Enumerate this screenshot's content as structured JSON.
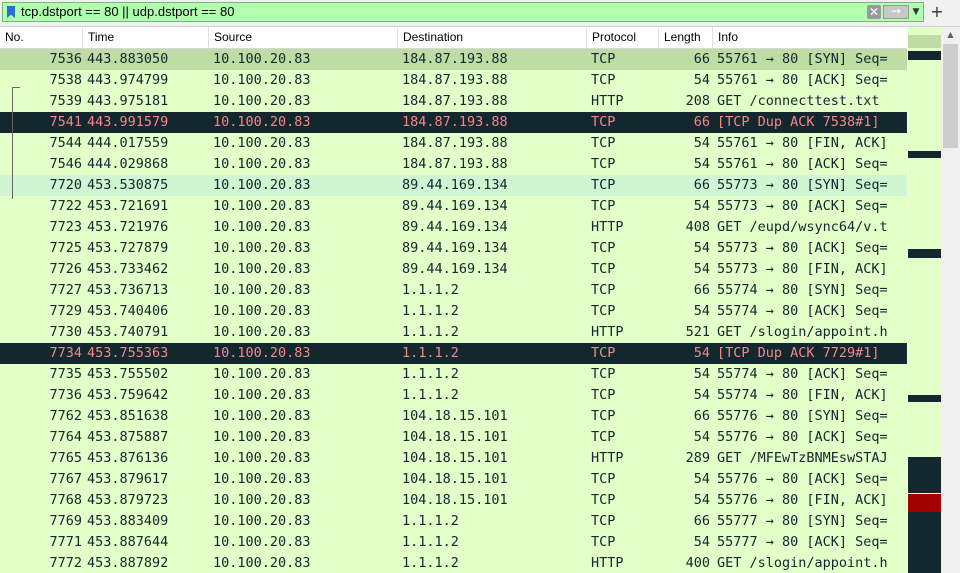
{
  "filter": {
    "value": "tcp.dstport == 80 || udp.dstport == 80",
    "clear_glyph": "✕",
    "apply_glyph": "→",
    "dropdown_glyph": "▼",
    "add_glyph": "+"
  },
  "columns": [
    "No.",
    "Time",
    "Source",
    "Destination",
    "Protocol",
    "Length",
    "Info"
  ],
  "packets": [
    {
      "no": "7536",
      "time": "443.883050",
      "src": "10.100.20.83",
      "dst": "184.87.193.88",
      "proto": "TCP",
      "len": "66",
      "info": "55761 → 80 [SYN] Seq=",
      "style": "sel"
    },
    {
      "no": "7538",
      "time": "443.974799",
      "src": "10.100.20.83",
      "dst": "184.87.193.88",
      "proto": "TCP",
      "len": "54",
      "info": "55761 → 80 [ACK] Seq=",
      "style": ""
    },
    {
      "no": "7539",
      "time": "443.975181",
      "src": "10.100.20.83",
      "dst": "184.87.193.88",
      "proto": "HTTP",
      "len": "208",
      "info": "GET /connecttest.txt",
      "style": ""
    },
    {
      "no": "7541",
      "time": "443.991579",
      "src": "10.100.20.83",
      "dst": "184.87.193.88",
      "proto": "TCP",
      "len": "66",
      "info": "[TCP Dup ACK 7538#1]",
      "style": "err"
    },
    {
      "no": "7544",
      "time": "444.017559",
      "src": "10.100.20.83",
      "dst": "184.87.193.88",
      "proto": "TCP",
      "len": "54",
      "info": "55761 → 80 [FIN, ACK]",
      "style": ""
    },
    {
      "no": "7546",
      "time": "444.029868",
      "src": "10.100.20.83",
      "dst": "184.87.193.88",
      "proto": "TCP",
      "len": "54",
      "info": "55761 → 80 [ACK] Seq=",
      "style": ""
    },
    {
      "no": "7720",
      "time": "453.530875",
      "src": "10.100.20.83",
      "dst": "89.44.169.134",
      "proto": "TCP",
      "len": "66",
      "info": "55773 → 80 [SYN] Seq=",
      "style": "hl"
    },
    {
      "no": "7722",
      "time": "453.721691",
      "src": "10.100.20.83",
      "dst": "89.44.169.134",
      "proto": "TCP",
      "len": "54",
      "info": "55773 → 80 [ACK] Seq=",
      "style": ""
    },
    {
      "no": "7723",
      "time": "453.721976",
      "src": "10.100.20.83",
      "dst": "89.44.169.134",
      "proto": "HTTP",
      "len": "408",
      "info": "GET /eupd/wsync64/v.t",
      "style": ""
    },
    {
      "no": "7725",
      "time": "453.727879",
      "src": "10.100.20.83",
      "dst": "89.44.169.134",
      "proto": "TCP",
      "len": "54",
      "info": "55773 → 80 [ACK] Seq=",
      "style": ""
    },
    {
      "no": "7726",
      "time": "453.733462",
      "src": "10.100.20.83",
      "dst": "89.44.169.134",
      "proto": "TCP",
      "len": "54",
      "info": "55773 → 80 [FIN, ACK]",
      "style": ""
    },
    {
      "no": "7727",
      "time": "453.736713",
      "src": "10.100.20.83",
      "dst": "1.1.1.2",
      "proto": "TCP",
      "len": "66",
      "info": "55774 → 80 [SYN] Seq=",
      "style": ""
    },
    {
      "no": "7729",
      "time": "453.740406",
      "src": "10.100.20.83",
      "dst": "1.1.1.2",
      "proto": "TCP",
      "len": "54",
      "info": "55774 → 80 [ACK] Seq=",
      "style": ""
    },
    {
      "no": "7730",
      "time": "453.740791",
      "src": "10.100.20.83",
      "dst": "1.1.1.2",
      "proto": "HTTP",
      "len": "521",
      "info": "GET /slogin/appoint.h",
      "style": ""
    },
    {
      "no": "7734",
      "time": "453.755363",
      "src": "10.100.20.83",
      "dst": "1.1.1.2",
      "proto": "TCP",
      "len": "54",
      "info": "[TCP Dup ACK 7729#1]",
      "style": "err"
    },
    {
      "no": "7735",
      "time": "453.755502",
      "src": "10.100.20.83",
      "dst": "1.1.1.2",
      "proto": "TCP",
      "len": "54",
      "info": "55774 → 80 [ACK] Seq=",
      "style": ""
    },
    {
      "no": "7736",
      "time": "453.759642",
      "src": "10.100.20.83",
      "dst": "1.1.1.2",
      "proto": "TCP",
      "len": "54",
      "info": "55774 → 80 [FIN, ACK]",
      "style": ""
    },
    {
      "no": "7762",
      "time": "453.851638",
      "src": "10.100.20.83",
      "dst": "104.18.15.101",
      "proto": "TCP",
      "len": "66",
      "info": "55776 → 80 [SYN] Seq=",
      "style": ""
    },
    {
      "no": "7764",
      "time": "453.875887",
      "src": "10.100.20.83",
      "dst": "104.18.15.101",
      "proto": "TCP",
      "len": "54",
      "info": "55776 → 80 [ACK] Seq=",
      "style": ""
    },
    {
      "no": "7765",
      "time": "453.876136",
      "src": "10.100.20.83",
      "dst": "104.18.15.101",
      "proto": "HTTP",
      "len": "289",
      "info": "GET /MFEwTzBNMEswSTAJ",
      "style": ""
    },
    {
      "no": "7767",
      "time": "453.879617",
      "src": "10.100.20.83",
      "dst": "104.18.15.101",
      "proto": "TCP",
      "len": "54",
      "info": "55776 → 80 [ACK] Seq=",
      "style": ""
    },
    {
      "no": "7768",
      "time": "453.879723",
      "src": "10.100.20.83",
      "dst": "104.18.15.101",
      "proto": "TCP",
      "len": "54",
      "info": "55776 → 80 [FIN, ACK]",
      "style": ""
    },
    {
      "no": "7769",
      "time": "453.883409",
      "src": "10.100.20.83",
      "dst": "1.1.1.2",
      "proto": "TCP",
      "len": "66",
      "info": "55777 → 80 [SYN] Seq=",
      "style": ""
    },
    {
      "no": "7771",
      "time": "453.887644",
      "src": "10.100.20.83",
      "dst": "1.1.1.2",
      "proto": "TCP",
      "len": "54",
      "info": "55777 → 80 [ACK] Seq=",
      "style": ""
    },
    {
      "no": "7772",
      "time": "453.887892",
      "src": "10.100.20.83",
      "dst": "1.1.1.2",
      "proto": "HTTP",
      "len": "400",
      "info": "GET /slogin/appoint.h",
      "style": ""
    }
  ],
  "colors": {
    "row_default": "#e4ffc7",
    "row_selected": "#c0dca4",
    "row_highlight": "#cff5d3",
    "row_error_bg": "#12272e",
    "row_error_fg": "#f78787",
    "filter_valid": "#afffaf",
    "minimap_dark": "#12272e",
    "minimap_red": "#a40000"
  },
  "scrollbar": {
    "up_glyph": "▲"
  }
}
